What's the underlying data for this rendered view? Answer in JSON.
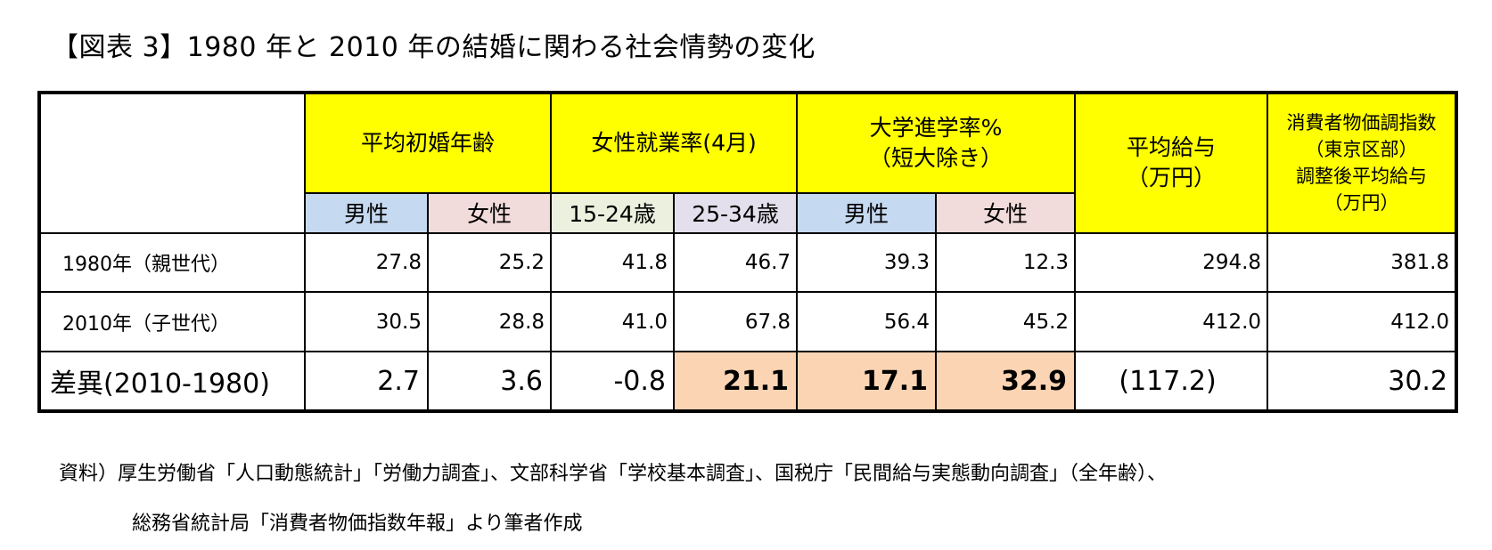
{
  "title": "【図表 3】1980 年と 2010 年の結婚に関わる社会情勢の変化",
  "headers": {
    "marriage_age": "平均初婚年齢",
    "female_employment": "女性就業率(4月)",
    "university_line1": "大学進学率%",
    "university_line2": "（短大除き）",
    "salary_line1": "平均給与",
    "salary_line2": "（万円）",
    "cpi_line1": "消費者物価調指数",
    "cpi_line2": "（東京区部）",
    "cpi_line3": "調整後平均給与",
    "cpi_line4": "（万円）",
    "male": "男性",
    "female": "女性",
    "age_15_24": "15-24歳",
    "age_25_34": "25-34歳"
  },
  "rows": [
    {
      "label": "1980年（親世代）",
      "values": [
        "27.8",
        "25.2",
        "41.8",
        "46.7",
        "39.3",
        "12.3",
        "294.8",
        "381.8"
      ]
    },
    {
      "label": "2010年（子世代）",
      "values": [
        "30.5",
        "28.8",
        "41.0",
        "67.8",
        "56.4",
        "45.2",
        "412.0",
        "412.0"
      ]
    }
  ],
  "diff_row": {
    "label": "差異(2010-1980)",
    "values": [
      "2.7",
      "3.6",
      "-0.8",
      "21.1",
      "17.1",
      "32.9",
      "(117.2)",
      "30.2"
    ]
  },
  "source_line1": "資料）厚生労働省「人口動態統計」「労働力調査」、文部科学省「学校基本調査」、国税庁「民間給与実態動向調査」（全年齢）、",
  "source_line2": "総務省統計局「消費者物価指数年報」より筆者作成",
  "colors": {
    "header_yellow": "#ffff00",
    "male_blue": "#c5d9f1",
    "female_pink": "#f2dcdb",
    "age1_green": "#ebf1de",
    "age2_purple": "#e4dfec",
    "highlight_peach": "#fbd4b4"
  }
}
